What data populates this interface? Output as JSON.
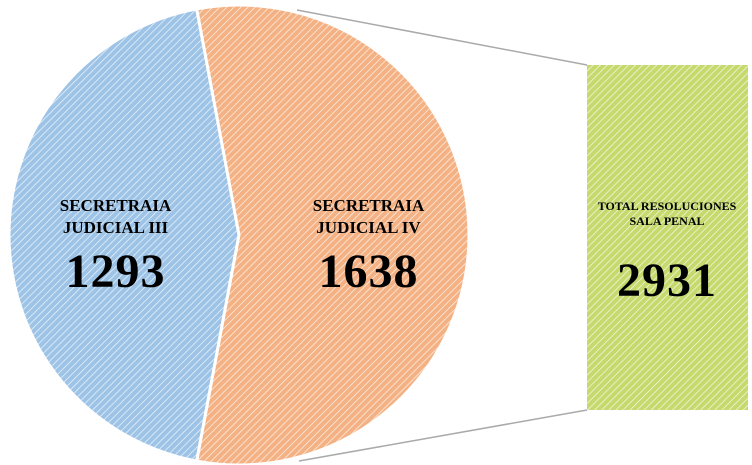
{
  "chart_data": {
    "type": "pie",
    "categories": [
      "SECRETRAIA JUDICIAL III",
      "SECRETRAIA JUDICIAL IV"
    ],
    "values": [
      1293,
      1638
    ],
    "colors": [
      "#9dc3e6",
      "#f4b183"
    ],
    "total": {
      "label": "TOTAL RESOLUCIONES SALA PENAL",
      "value": 2931,
      "color": "#c5d96d"
    }
  }
}
